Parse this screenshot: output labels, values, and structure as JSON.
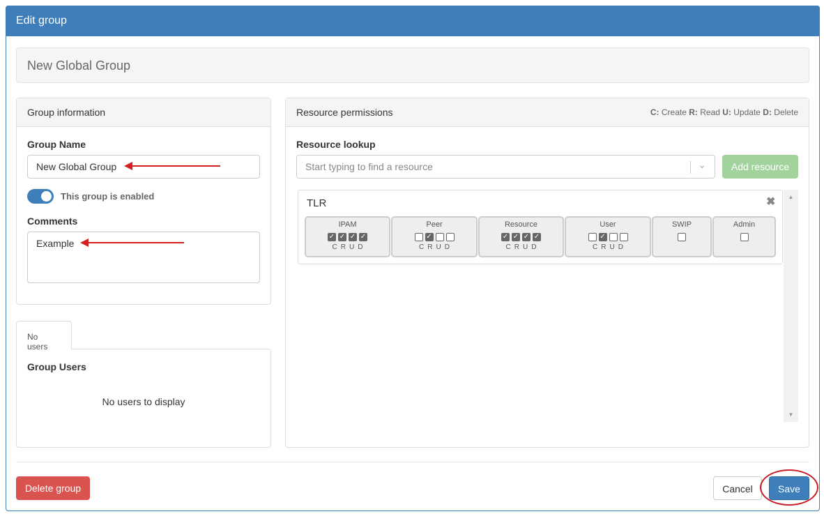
{
  "modal": {
    "title": "Edit group"
  },
  "group_title": "New Global Group",
  "group_info": {
    "heading": "Group information",
    "name_label": "Group Name",
    "name_value": "New Global Group",
    "enabled": true,
    "enabled_label": "This group is enabled",
    "comments_label": "Comments",
    "comments_value": "Example"
  },
  "users": {
    "tab": "No users",
    "heading": "Group Users",
    "empty": "No users to display"
  },
  "permissions": {
    "heading": "Resource permissions",
    "legend": [
      {
        "k": "C:",
        "v": "Create"
      },
      {
        "k": "R:",
        "v": "Read"
      },
      {
        "k": "U:",
        "v": "Update"
      },
      {
        "k": "D:",
        "v": "Delete"
      }
    ],
    "lookup_label": "Resource lookup",
    "lookup_placeholder": "Start typing to find a resource",
    "add_button": "Add resource",
    "resource": {
      "name": "TLR",
      "groups": [
        {
          "name": "IPAM",
          "crud": [
            true,
            true,
            true,
            true
          ]
        },
        {
          "name": "Peer",
          "crud": [
            false,
            true,
            false,
            false
          ]
        },
        {
          "name": "Resource",
          "crud": [
            true,
            true,
            true,
            true
          ]
        },
        {
          "name": "User",
          "crud": [
            false,
            true,
            false,
            false
          ]
        },
        {
          "name": "SWIP",
          "single": false
        },
        {
          "name": "Admin",
          "single": false
        }
      ],
      "crud_letters": "CRUD"
    }
  },
  "footer": {
    "delete": "Delete group",
    "cancel": "Cancel",
    "save": "Save"
  },
  "colors": {
    "primary": "#3d7ebb",
    "danger": "#d9534f",
    "success": "#a3d39c",
    "annotation": "#d42020"
  }
}
